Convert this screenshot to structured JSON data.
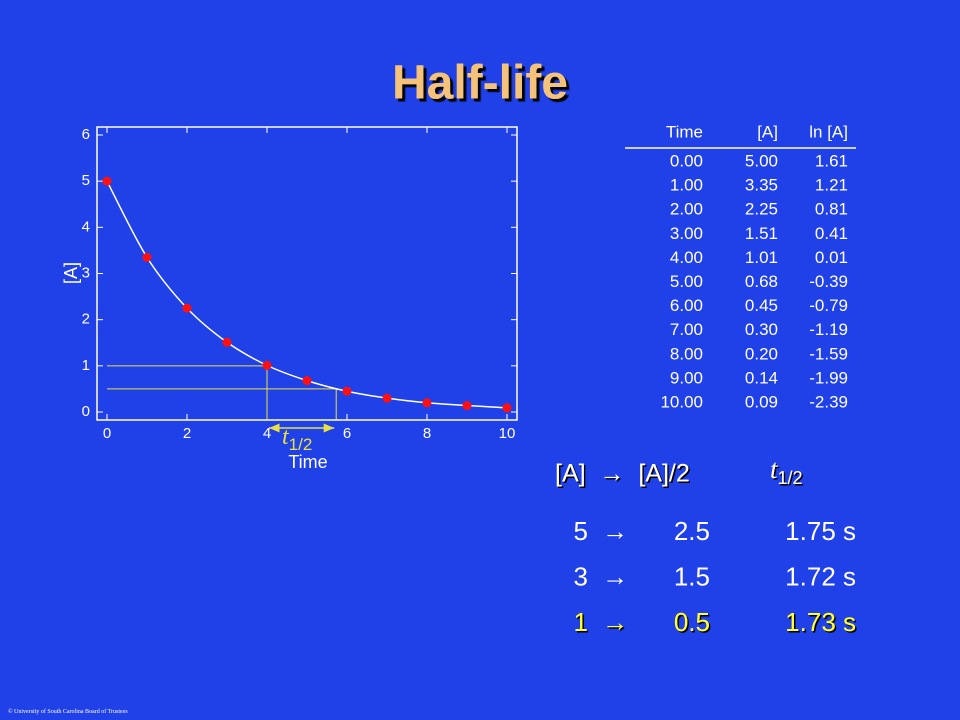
{
  "title": "Half-life",
  "chart_data": {
    "type": "scatter",
    "x_label": "Time",
    "y_label": "[A]",
    "x": [
      0,
      1,
      2,
      3,
      4,
      5,
      6,
      7,
      8,
      9,
      10
    ],
    "series": [
      {
        "color": "#ff1010",
        "values": [
          5.0,
          3.35,
          2.25,
          1.51,
          1.01,
          0.68,
          0.45,
          0.3,
          0.2,
          0.14,
          0.09
        ]
      }
    ],
    "curve_color": "#ffffff",
    "xlim": [
      0,
      10
    ],
    "xticks": [
      0,
      2,
      4,
      6,
      8,
      10
    ],
    "ylim": [
      0,
      6
    ],
    "yticks": [
      0,
      1,
      2,
      3,
      4,
      5,
      6
    ],
    "guides": [
      {
        "x": 4.0,
        "y": 1
      },
      {
        "x": 5.73,
        "y": 0.5
      }
    ],
    "guide_color": "#e8e040",
    "annotation": {
      "symbol": "t",
      "subscript": "1/2"
    }
  },
  "table": {
    "header": [
      "Time",
      "[A]",
      "ln [A]"
    ],
    "rows": [
      [
        "0.00",
        "5.00",
        "1.61"
      ],
      [
        "1.00",
        "3.35",
        "1.21"
      ],
      [
        "2.00",
        "2.25",
        "0.81"
      ],
      [
        "3.00",
        "1.51",
        "0.41"
      ],
      [
        "4.00",
        "1.01",
        "0.01"
      ],
      [
        "5.00",
        "0.68",
        "-0.39"
      ],
      [
        "6.00",
        "0.45",
        "-0.79"
      ],
      [
        "7.00",
        "0.30",
        "-1.19"
      ],
      [
        "8.00",
        "0.20",
        "-1.59"
      ],
      [
        "9.00",
        "0.14",
        "-1.99"
      ],
      [
        "10.00",
        "0.09",
        "-2.39"
      ]
    ]
  },
  "half_life": {
    "header": {
      "ratio": "[A]  →  [A]/2",
      "symbol": "t",
      "subscript": "1/2"
    },
    "rows": [
      [
        "5",
        "→",
        "2.5",
        "1.75 s"
      ],
      [
        "3",
        "→",
        "1.5",
        "1.72 s"
      ],
      [
        "1",
        "→",
        "0.5",
        "1.73 s"
      ]
    ]
  },
  "footer": "© University of South Carolina Board of Trustees"
}
